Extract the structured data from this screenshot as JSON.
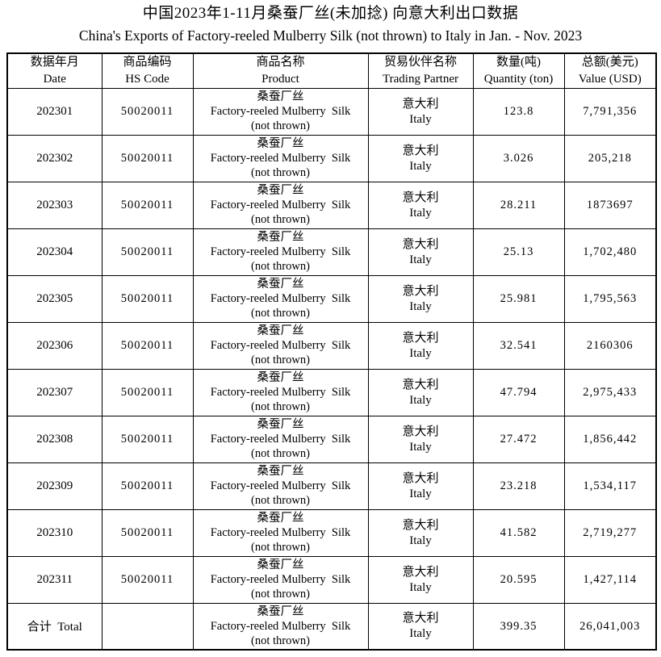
{
  "title_zh": "中国2023年1-11月桑蚕厂丝(未加捻) 向意大利出口数据",
  "title_en": "China's Exports of Factory-reeled Mulberry Silk (not thrown) to Italy in Jan. - Nov. 2023",
  "table": {
    "columns": [
      {
        "zh": "数据年月",
        "en": "Date"
      },
      {
        "zh": "商品编码",
        "en": "HS Code"
      },
      {
        "zh": "商品名称",
        "en": "Product"
      },
      {
        "zh": "贸易伙伴名称",
        "en": "Trading Partner"
      },
      {
        "zh": "数量(吨)",
        "en": "Quantity (ton)"
      },
      {
        "zh": "总额(美元)",
        "en": "Value (USD)"
      }
    ],
    "rows": [
      {
        "date": "202301",
        "hs_code": "50020011",
        "product_zh": "桑蚕厂丝",
        "product_en": "Factory-reeled Mulberry  Silk",
        "product_note": "(not thrown)",
        "partner_zh": "意大利",
        "partner_en": "Italy",
        "quantity": "123.8",
        "value": "7,791,356"
      },
      {
        "date": "202302",
        "hs_code": "50020011",
        "product_zh": "桑蚕厂丝",
        "product_en": "Factory-reeled Mulberry  Silk",
        "product_note": "(not thrown)",
        "partner_zh": "意大利",
        "partner_en": "Italy",
        "quantity": "3.026",
        "value": "205,218"
      },
      {
        "date": "202303",
        "hs_code": "50020011",
        "product_zh": "桑蚕厂丝",
        "product_en": "Factory-reeled Mulberry  Silk",
        "product_note": "(not thrown)",
        "partner_zh": "意大利",
        "partner_en": "Italy",
        "quantity": "28.211",
        "value": "1873697"
      },
      {
        "date": "202304",
        "hs_code": "50020011",
        "product_zh": "桑蚕厂丝",
        "product_en": "Factory-reeled Mulberry  Silk",
        "product_note": "(not thrown)",
        "partner_zh": "意大利",
        "partner_en": "Italy",
        "quantity": "25.13",
        "value": "1,702,480"
      },
      {
        "date": "202305",
        "hs_code": "50020011",
        "product_zh": "桑蚕厂丝",
        "product_en": "Factory-reeled Mulberry  Silk",
        "product_note": "(not thrown)",
        "partner_zh": "意大利",
        "partner_en": "Italy",
        "quantity": "25.981",
        "value": "1,795,563"
      },
      {
        "date": "202306",
        "hs_code": "50020011",
        "product_zh": "桑蚕厂丝",
        "product_en": "Factory-reeled Mulberry  Silk",
        "product_note": "(not thrown)",
        "partner_zh": "意大利",
        "partner_en": "Italy",
        "quantity": "32.541",
        "value": "2160306"
      },
      {
        "date": "202307",
        "hs_code": "50020011",
        "product_zh": "桑蚕厂丝",
        "product_en": "Factory-reeled Mulberry  Silk",
        "product_note": "(not thrown)",
        "partner_zh": "意大利",
        "partner_en": "Italy",
        "quantity": "47.794",
        "value": "2,975,433"
      },
      {
        "date": "202308",
        "hs_code": "50020011",
        "product_zh": "桑蚕厂丝",
        "product_en": "Factory-reeled Mulberry  Silk",
        "product_note": "(not thrown)",
        "partner_zh": "意大利",
        "partner_en": "Italy",
        "quantity": "27.472",
        "value": "1,856,442"
      },
      {
        "date": "202309",
        "hs_code": "50020011",
        "product_zh": "桑蚕厂丝",
        "product_en": "Factory-reeled Mulberry  Silk",
        "product_note": "(not thrown)",
        "partner_zh": "意大利",
        "partner_en": "Italy",
        "quantity": "23.218",
        "value": "1,534,117"
      },
      {
        "date": "202310",
        "hs_code": "50020011",
        "product_zh": "桑蚕厂丝",
        "product_en": "Factory-reeled Mulberry  Silk",
        "product_note": "(not thrown)",
        "partner_zh": "意大利",
        "partner_en": "Italy",
        "quantity": "41.582",
        "value": "2,719,277"
      },
      {
        "date": "202311",
        "hs_code": "50020011",
        "product_zh": "桑蚕厂丝",
        "product_en": "Factory-reeled Mulberry  Silk",
        "product_note": "(not thrown)",
        "partner_zh": "意大利",
        "partner_en": "Italy",
        "quantity": "20.595",
        "value": "1,427,114"
      },
      {
        "date": "合计  Total",
        "hs_code": "",
        "product_zh": "桑蚕厂丝",
        "product_en": "Factory-reeled Mulberry  Silk",
        "product_note": "(not thrown)",
        "partner_zh": "意大利",
        "partner_en": "Italy",
        "quantity": "399.35",
        "value": "26,041,003"
      }
    ]
  }
}
